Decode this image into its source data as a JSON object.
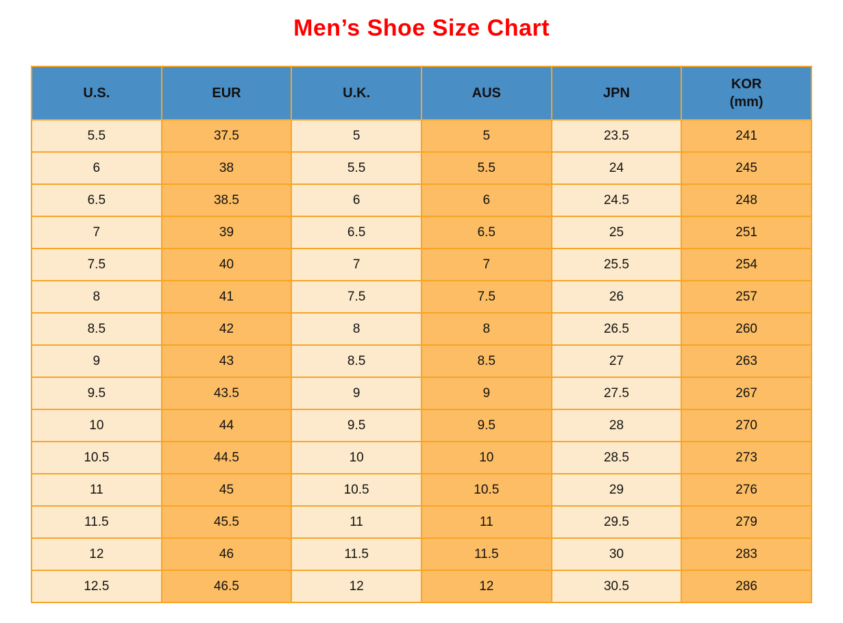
{
  "page": {
    "title": "Men’s Shoe Size Chart"
  },
  "colors": {
    "title_text": "#fe0000",
    "header_bg": "#4a8ec6",
    "cell_light": "#fdeacc",
    "cell_orange": "#fcbd64",
    "grid_border": "#f7a427",
    "cell_text": "#111111"
  },
  "chart_data": {
    "type": "table",
    "title": "Men’s Shoe Size Chart",
    "columns": [
      {
        "id": "us",
        "label": "U.S.",
        "sublabel": ""
      },
      {
        "id": "eur",
        "label": "EUR",
        "sublabel": ""
      },
      {
        "id": "uk",
        "label": "U.K.",
        "sublabel": ""
      },
      {
        "id": "aus",
        "label": "AUS",
        "sublabel": ""
      },
      {
        "id": "jpn",
        "label": "JPN",
        "sublabel": ""
      },
      {
        "id": "kor",
        "label": "KOR",
        "sublabel": "(mm)"
      }
    ],
    "rows": [
      [
        "5.5",
        "37.5",
        "5",
        "5",
        "23.5",
        "241"
      ],
      [
        "6",
        "38",
        "5.5",
        "5.5",
        "24",
        "245"
      ],
      [
        "6.5",
        "38.5",
        "6",
        "6",
        "24.5",
        "248"
      ],
      [
        "7",
        "39",
        "6.5",
        "6.5",
        "25",
        "251"
      ],
      [
        "7.5",
        "40",
        "7",
        "7",
        "25.5",
        "254"
      ],
      [
        "8",
        "41",
        "7.5",
        "7.5",
        "26",
        "257"
      ],
      [
        "8.5",
        "42",
        "8",
        "8",
        "26.5",
        "260"
      ],
      [
        "9",
        "43",
        "8.5",
        "8.5",
        "27",
        "263"
      ],
      [
        "9.5",
        "43.5",
        "9",
        "9",
        "27.5",
        "267"
      ],
      [
        "10",
        "44",
        "9.5",
        "9.5",
        "28",
        "270"
      ],
      [
        "10.5",
        "44.5",
        "10",
        "10",
        "28.5",
        "273"
      ],
      [
        "11",
        "45",
        "10.5",
        "10.5",
        "29",
        "276"
      ],
      [
        "11.5",
        "45.5",
        "11",
        "11",
        "29.5",
        "279"
      ],
      [
        "12",
        "46",
        "11.5",
        "11.5",
        "30",
        "283"
      ],
      [
        "12.5",
        "46.5",
        "12",
        "12",
        "30.5",
        "286"
      ]
    ]
  }
}
